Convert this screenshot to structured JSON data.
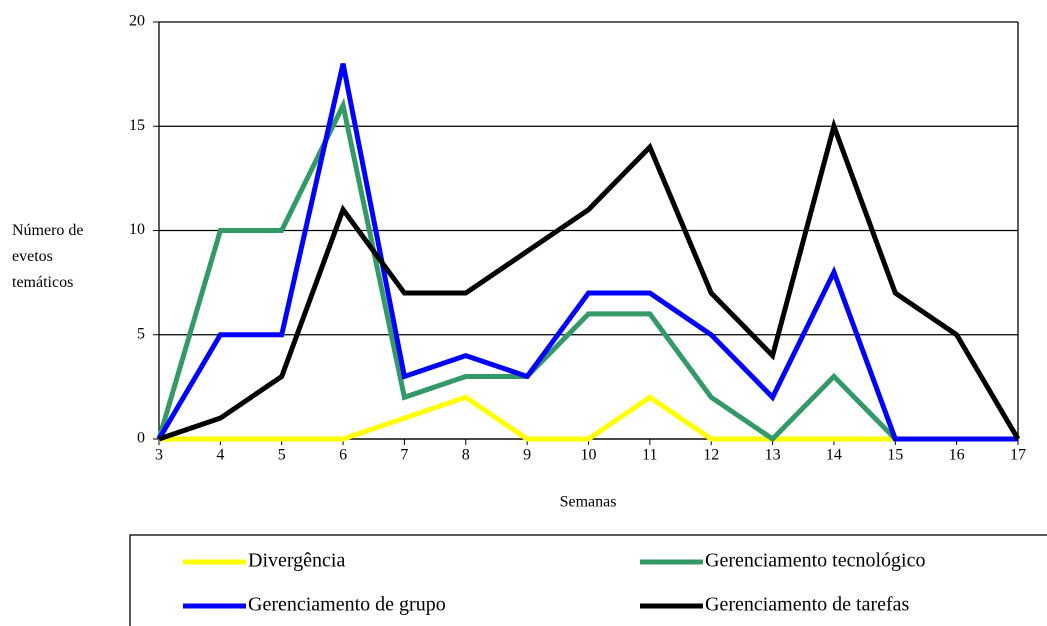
{
  "chart_data": {
    "type": "line",
    "xlabel": "Semanas",
    "ylabel": "Número de evetos temáticos",
    "x": [
      3,
      4,
      5,
      6,
      7,
      8,
      9,
      10,
      11,
      12,
      13,
      14,
      15,
      16,
      17
    ],
    "xlim": [
      3,
      17
    ],
    "xticks": [
      3,
      4,
      5,
      6,
      7,
      8,
      9,
      10,
      11,
      12,
      13,
      14,
      15,
      16,
      17
    ],
    "ylim": [
      0,
      20
    ],
    "yticks": [
      0,
      5,
      10,
      15,
      20
    ],
    "grid": true,
    "legend": "bottom",
    "series": [
      {
        "name": "Divergência",
        "color": "#ffff00",
        "values": [
          0,
          0,
          0,
          0,
          1,
          2,
          0,
          0,
          2,
          0,
          0,
          0,
          0,
          null,
          null
        ]
      },
      {
        "name": "Gerenciamento tecnológico",
        "color": "#339966",
        "values": [
          0,
          10,
          10,
          16,
          2,
          3,
          3,
          6,
          6,
          2,
          0,
          3,
          0,
          null,
          null
        ]
      },
      {
        "name": "Gerenciamento de grupo",
        "color": "#0000ff",
        "values": [
          0,
          5,
          5,
          18,
          3,
          4,
          3,
          7,
          7,
          5,
          2,
          8,
          0,
          0,
          0
        ]
      },
      {
        "name": "Gerenciamento de tarefas",
        "color": "#000000",
        "values": [
          0,
          1,
          3,
          11,
          7,
          7,
          9,
          11,
          14,
          7,
          4,
          15,
          7,
          5,
          0
        ]
      }
    ]
  }
}
